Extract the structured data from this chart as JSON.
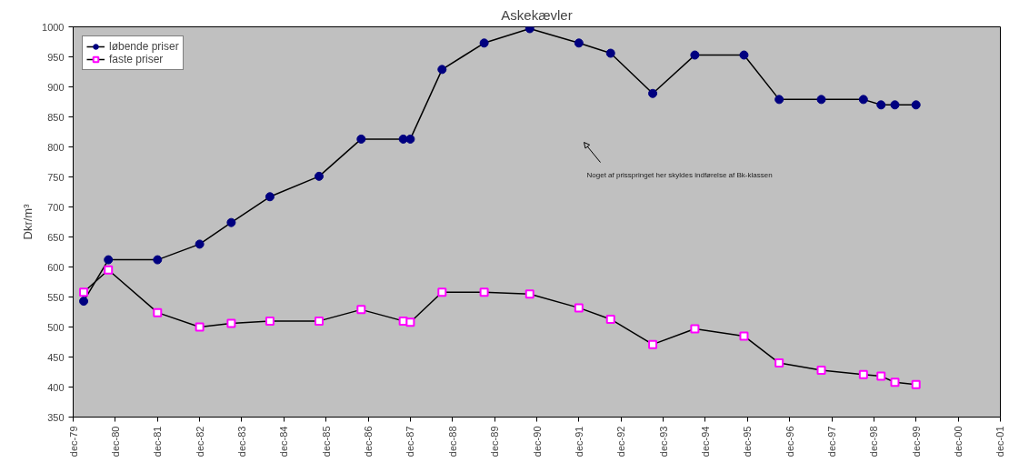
{
  "chart_data": {
    "type": "line",
    "title": "Askekævler",
    "ylabel": "Dkr/m³",
    "x": [
      "1980-03",
      "1980-10",
      "1981-12",
      "1982-12",
      "1983-09",
      "1984-08",
      "1985-10",
      "1986-10",
      "1987-10",
      "1987-12",
      "1988-09",
      "1989-09",
      "1990-10",
      "1991-12",
      "1992-09",
      "1993-09",
      "1994-09",
      "1995-11",
      "1996-09",
      "1997-09",
      "1998-09",
      "1999-02",
      "1999-06",
      "1999-12"
    ],
    "series": [
      {
        "name": "løbende priser",
        "color": "#000080",
        "marker": "circle",
        "values": [
          543,
          612,
          612,
          638,
          674,
          717,
          751,
          813,
          813,
          813,
          929,
          973,
          997,
          973,
          956,
          889,
          953,
          953,
          879,
          879,
          879,
          870,
          870,
          870
        ]
      },
      {
        "name": "faste priser",
        "color": "#ff00ff",
        "marker": "square",
        "values": [
          558,
          595,
          524,
          500,
          506,
          510,
          510,
          529,
          510,
          508,
          558,
          558,
          555,
          532,
          513,
          471,
          497,
          485,
          440,
          428,
          421,
          418,
          408,
          404
        ]
      }
    ],
    "xlim": [
      "1979-12",
      "2001-12"
    ],
    "xticks": [
      {
        "value": "1979-12",
        "label": "dec-79"
      },
      {
        "value": "1980-12",
        "label": "dec-80"
      },
      {
        "value": "1981-12",
        "label": "dec-81"
      },
      {
        "value": "1982-12",
        "label": "dec-82"
      },
      {
        "value": "1983-12",
        "label": "dec-83"
      },
      {
        "value": "1984-12",
        "label": "dec-84"
      },
      {
        "value": "1985-12",
        "label": "dec-85"
      },
      {
        "value": "1986-12",
        "label": "dec-86"
      },
      {
        "value": "1987-12",
        "label": "dec-87"
      },
      {
        "value": "1988-12",
        "label": "dec-88"
      },
      {
        "value": "1989-12",
        "label": "dec-89"
      },
      {
        "value": "1990-12",
        "label": "dec-90"
      },
      {
        "value": "1991-12",
        "label": "dec-91"
      },
      {
        "value": "1992-12",
        "label": "dec-92"
      },
      {
        "value": "1993-12",
        "label": "dec-93"
      },
      {
        "value": "1994-12",
        "label": "dec-94"
      },
      {
        "value": "1995-12",
        "label": "dec-95"
      },
      {
        "value": "1996-12",
        "label": "dec-96"
      },
      {
        "value": "1997-12",
        "label": "dec-97"
      },
      {
        "value": "1998-12",
        "label": "dec-98"
      },
      {
        "value": "1999-12",
        "label": "dec-99"
      },
      {
        "value": "2000-12",
        "label": "dec-00"
      },
      {
        "value": "2001-12",
        "label": "dec-01"
      }
    ],
    "ylim": [
      350,
      1000
    ],
    "yticks": [
      350,
      400,
      450,
      500,
      550,
      600,
      650,
      700,
      750,
      800,
      850,
      900,
      950,
      1000
    ],
    "annotations": [
      "Noget af prisspringet her skyldes indførelse af Bk-klassen"
    ],
    "legend": "top left",
    "grid": false
  }
}
